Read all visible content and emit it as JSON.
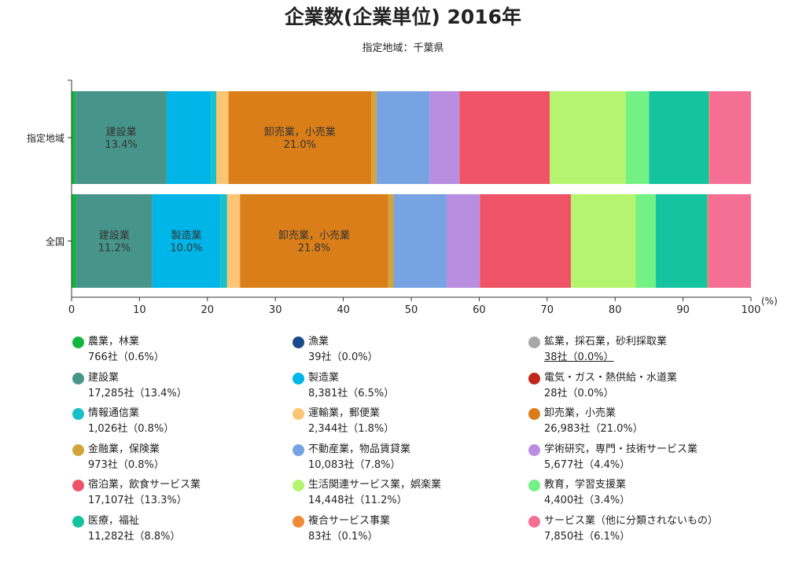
{
  "title": "企業数(企業単位) 2016年",
  "subtitle": "指定地域：千葉県",
  "chart_data": {
    "type": "bar",
    "orientation": "horizontal",
    "stacked": true,
    "categories": [
      "指定地域",
      "全国"
    ],
    "xlim": [
      0,
      100
    ],
    "xticks": [
      0,
      10,
      20,
      30,
      40,
      50,
      60,
      70,
      80,
      90,
      100
    ],
    "xunit": "(%)",
    "grid": false,
    "legend_position": "bottom",
    "series": [
      {
        "name": "農業，林業",
        "color": "#12b53e",
        "values": [
          0.6,
          0.7
        ],
        "count": "766社（0.6%）"
      },
      {
        "name": "漁業",
        "color": "#1a4a8c",
        "values": [
          0.0,
          0.0
        ],
        "count": "39社（0.0%）"
      },
      {
        "name": "鉱業，採石業，砂利採取業",
        "color": "#a8a8a8",
        "values": [
          0.0,
          0.0
        ],
        "count": "38社（0.0%）"
      },
      {
        "name": "建設業",
        "color": "#47958a",
        "values": [
          13.4,
          11.2
        ],
        "count": "17,285社（13.4%）"
      },
      {
        "name": "製造業",
        "color": "#00b6e8",
        "values": [
          6.5,
          10.0
        ],
        "count": "8,381社（6.5%）"
      },
      {
        "name": "電気・ガス・熱供給・水道業",
        "color": "#c0261e",
        "values": [
          0.0,
          0.0
        ],
        "count": "28社（0.0%）"
      },
      {
        "name": "情報通信業",
        "color": "#19c0c9",
        "values": [
          0.8,
          1.0
        ],
        "count": "1,026社（0.8%）"
      },
      {
        "name": "運輸業，郵便業",
        "color": "#fbc575",
        "values": [
          1.8,
          1.9
        ],
        "count": "2,344社（1.8%）"
      },
      {
        "name": "卸売業，小売業",
        "color": "#d97e18",
        "values": [
          21.0,
          21.8
        ],
        "count": "26,983社（21.0%）"
      },
      {
        "name": "金融業，保険業",
        "color": "#d3a43c",
        "values": [
          0.8,
          0.8
        ],
        "count": "973社（0.8%）"
      },
      {
        "name": "不動産業，物品賃貸業",
        "color": "#77a3e3",
        "values": [
          7.8,
          7.8
        ],
        "count": "10,083社（7.8%）"
      },
      {
        "name": "学術研究，専門・技術サービス業",
        "color": "#b98ee0",
        "values": [
          4.4,
          4.9
        ],
        "count": "5,677社（4.4%）"
      },
      {
        "name": "宿泊業，飲食サービス業",
        "color": "#ef5466",
        "values": [
          13.3,
          13.4
        ],
        "count": "17,107社（13.3%）"
      },
      {
        "name": "生活関連サービス業，娯楽業",
        "color": "#b5f46f",
        "values": [
          11.2,
          9.5
        ],
        "count": "14,448社（11.2%）"
      },
      {
        "name": "教育，学習支援業",
        "color": "#74f184",
        "values": [
          3.4,
          3.0
        ],
        "count": "4,400社（3.4%）"
      },
      {
        "name": "医療，福祉",
        "color": "#14c4a0",
        "values": [
          8.8,
          7.6
        ],
        "count": "11,282社（8.8%）"
      },
      {
        "name": "複合サービス事業",
        "color": "#ef8a38",
        "values": [
          0.1,
          0.1
        ],
        "count": "83社（0.1%）"
      },
      {
        "name": "サービス業（他に分類されないもの）",
        "color": "#f56f95",
        "values": [
          6.1,
          6.3
        ],
        "count": "7,850社（6.1%）"
      }
    ],
    "segment_labels": [
      {
        "category": "指定地域",
        "series": "建設業",
        "text": "13.4%"
      },
      {
        "category": "指定地域",
        "series": "卸売業，小売業",
        "text": "21.0%"
      },
      {
        "category": "全国",
        "series": "建設業",
        "text": "11.2%"
      },
      {
        "category": "全国",
        "series": "製造業",
        "text": "10.0%"
      },
      {
        "category": "全国",
        "series": "卸売業，小売業",
        "text": "21.8%"
      }
    ],
    "highlighted_legend_value": "鉱業，採石業，砂利採取業"
  }
}
